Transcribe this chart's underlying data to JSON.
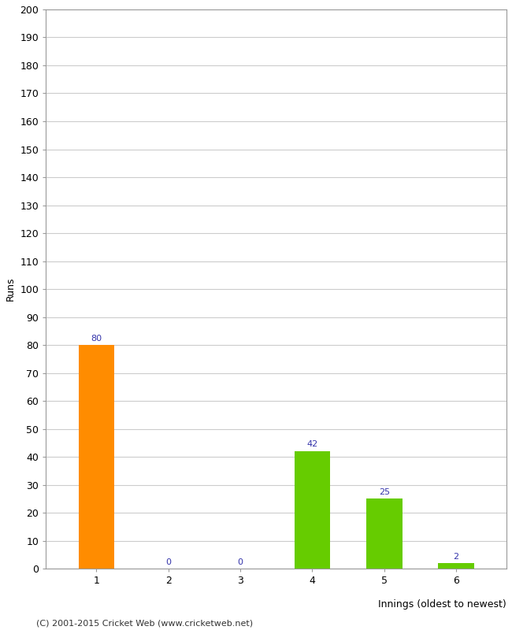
{
  "categories": [
    1,
    2,
    3,
    4,
    5,
    6
  ],
  "values": [
    80,
    0,
    0,
    42,
    25,
    2
  ],
  "bar_colors": [
    "#FF8C00",
    "#66CC00",
    "#66CC00",
    "#66CC00",
    "#66CC00",
    "#66CC00"
  ],
  "xlabel": "Innings (oldest to newest)",
  "ylabel": "Runs",
  "ylim": [
    0,
    200
  ],
  "yticks": [
    0,
    10,
    20,
    30,
    40,
    50,
    60,
    70,
    80,
    90,
    100,
    110,
    120,
    130,
    140,
    150,
    160,
    170,
    180,
    190,
    200
  ],
  "footer": "(C) 2001-2015 Cricket Web (www.cricketweb.net)",
  "label_color": "#3333AA",
  "background_color": "#FFFFFF",
  "grid_color": "#CCCCCC",
  "border_color": "#999999"
}
